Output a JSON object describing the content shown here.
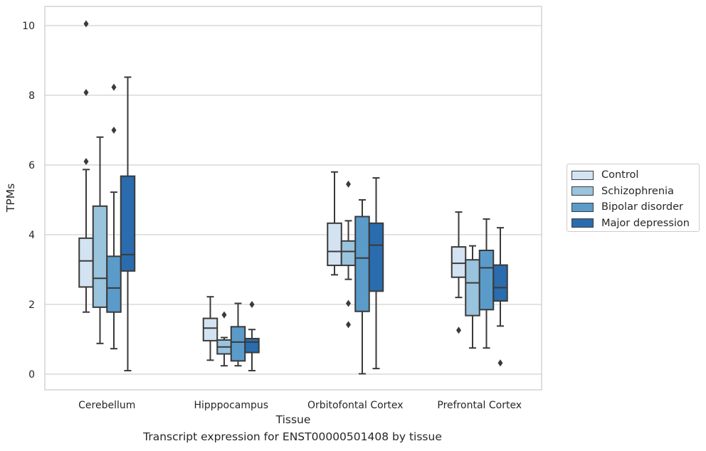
{
  "chart_data": {
    "type": "box",
    "xlabel": "Tissue",
    "ylabel": "TPMs",
    "ylim": [
      -0.45,
      10.55
    ],
    "yticks": [
      0,
      2,
      4,
      6,
      8,
      10
    ],
    "grid": true,
    "legend_position": "right",
    "categories": [
      "Cerebellum",
      "Hipppocampus",
      "Orbitofontal Cortex",
      "Prefrontal Cortex"
    ],
    "series": [
      {
        "name": "Control",
        "color": "#d4e3f1",
        "boxes": [
          {
            "whislo": 1.78,
            "q1": 2.5,
            "med": 3.25,
            "q3": 3.9,
            "whishi": 5.87,
            "fliers": [
              6.1,
              8.08,
              10.05
            ]
          },
          {
            "whislo": 0.4,
            "q1": 0.96,
            "med": 1.32,
            "q3": 1.6,
            "whishi": 2.22,
            "fliers": []
          },
          {
            "whislo": 2.85,
            "q1": 3.12,
            "med": 3.52,
            "q3": 4.33,
            "whishi": 5.8,
            "fliers": []
          },
          {
            "whislo": 2.2,
            "q1": 2.78,
            "med": 3.18,
            "q3": 3.65,
            "whishi": 4.65,
            "fliers": [
              1.26
            ]
          }
        ]
      },
      {
        "name": "Schizophrenia",
        "color": "#9ac3dd",
        "boxes": [
          {
            "whislo": 0.88,
            "q1": 1.92,
            "med": 2.75,
            "q3": 4.82,
            "whishi": 6.8,
            "fliers": []
          },
          {
            "whislo": 0.24,
            "q1": 0.58,
            "med": 0.78,
            "q3": 0.98,
            "whishi": 1.05,
            "fliers": [
              1.7
            ]
          },
          {
            "whislo": 2.72,
            "q1": 3.12,
            "med": 3.52,
            "q3": 3.82,
            "whishi": 4.4,
            "fliers": [
              1.42,
              2.03,
              5.45
            ]
          },
          {
            "whislo": 0.75,
            "q1": 1.68,
            "med": 2.62,
            "q3": 3.28,
            "whishi": 3.68,
            "fliers": []
          }
        ]
      },
      {
        "name": "Bipolar disorder",
        "color": "#5b9bc9",
        "boxes": [
          {
            "whislo": 0.73,
            "q1": 1.78,
            "med": 2.47,
            "q3": 3.38,
            "whishi": 5.22,
            "fliers": [
              7.0,
              8.23
            ]
          },
          {
            "whislo": 0.24,
            "q1": 0.38,
            "med": 0.92,
            "q3": 1.36,
            "whishi": 2.03,
            "fliers": []
          },
          {
            "whislo": 0.01,
            "q1": 1.8,
            "med": 3.33,
            "q3": 4.52,
            "whishi": 5.0,
            "fliers": []
          },
          {
            "whislo": 0.75,
            "q1": 1.85,
            "med": 3.05,
            "q3": 3.55,
            "whishi": 4.45,
            "fliers": []
          }
        ]
      },
      {
        "name": "Major depression",
        "color": "#2a6cad",
        "boxes": [
          {
            "whislo": 0.1,
            "q1": 2.96,
            "med": 3.43,
            "q3": 5.68,
            "whishi": 8.52,
            "fliers": []
          },
          {
            "whislo": 0.1,
            "q1": 0.62,
            "med": 0.92,
            "q3": 1.02,
            "whishi": 1.28,
            "fliers": [
              2.0
            ]
          },
          {
            "whislo": 0.16,
            "q1": 2.38,
            "med": 3.7,
            "q3": 4.33,
            "whishi": 5.63,
            "fliers": []
          },
          {
            "whislo": 1.38,
            "q1": 2.1,
            "med": 2.48,
            "q3": 3.13,
            "whishi": 4.2,
            "fliers": [
              0.32
            ]
          }
        ]
      }
    ]
  },
  "caption": "Transcript expression for ENST00000501408 by tissue"
}
